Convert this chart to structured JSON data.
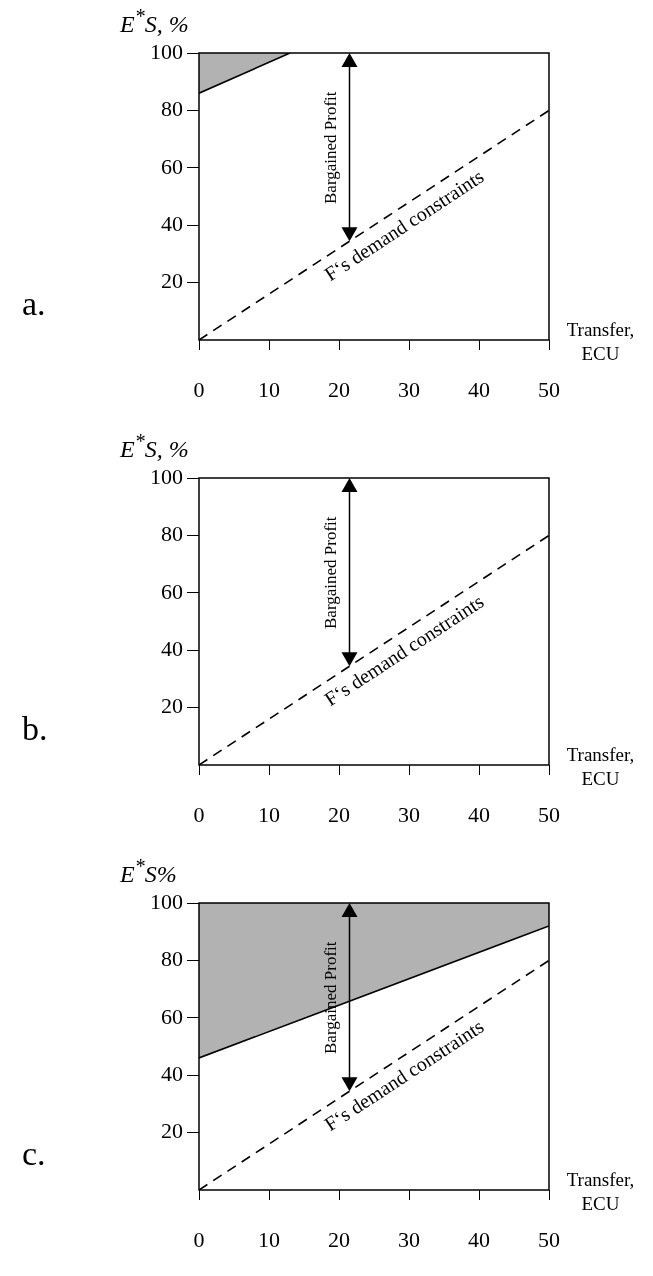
{
  "chart_data": [
    {
      "type": "line",
      "title": "a.",
      "ylabel": "E$^{*}$S, %",
      "xlabel": "Transfer, ECU",
      "xlim": [
        0,
        50
      ],
      "xticks": [
        0,
        10,
        20,
        30,
        40,
        50
      ],
      "ylim": [
        0,
        100
      ],
      "yticks": [
        20,
        40,
        60,
        80,
        100
      ],
      "grid": false,
      "legend": false,
      "marker": "none",
      "annotations": [
        "Bargained Profit"
      ],
      "series": [
        {
          "type": "line",
          "color": "#000000",
          "x": [
            0,
            13
          ],
          "values": [
            86,
            100
          ],
          "lower": [
            86,
            100
          ],
          "upper": [
            100,
            100
          ]
        },
        {
          "type": "line",
          "name": "F‘s demand constraints",
          "color": "#000000",
          "line_style": "dashed",
          "x": [
            0,
            50
          ],
          "values": [
            0,
            80
          ]
        }
      ]
    },
    {
      "type": "line",
      "title": "b.",
      "ylabel": "E$^{*}$S, %",
      "xlabel": "Transfer, ECU",
      "xlim": [
        0,
        50
      ],
      "xticks": [
        0,
        10,
        20,
        30,
        40,
        50
      ],
      "ylim": [
        0,
        100
      ],
      "yticks": [
        20,
        40,
        60,
        80,
        100
      ],
      "grid": false,
      "legend": false,
      "marker": "none",
      "annotations": [
        "Bargained Profit"
      ],
      "series": [
        {
          "type": "line",
          "name": "F‘s demand constraints",
          "color": "#000000",
          "line_style": "dashed",
          "x": [
            0,
            50
          ],
          "values": [
            0,
            80
          ]
        }
      ]
    },
    {
      "type": "line",
      "title": "c.",
      "ylabel": "E$^{*}$S%",
      "xlabel": "Transfer, ECU",
      "xlim": [
        0,
        50
      ],
      "xticks": [
        0,
        10,
        20,
        30,
        40,
        50
      ],
      "ylim": [
        0,
        100
      ],
      "yticks": [
        20,
        40,
        60,
        80,
        100
      ],
      "grid": false,
      "legend": false,
      "marker": "none",
      "annotations": [
        "Bargained Profit"
      ],
      "series": [
        {
          "type": "line",
          "color": "#000000",
          "x": [
            0,
            50
          ],
          "values": [
            46,
            92
          ],
          "lower": [
            46,
            92
          ],
          "upper": [
            100,
            100
          ]
        },
        {
          "type": "line",
          "name": "F‘s demand constraints",
          "color": "#000000",
          "line_style": "dashed",
          "x": [
            0,
            50
          ],
          "values": [
            0,
            80
          ]
        }
      ]
    }
  ]
}
